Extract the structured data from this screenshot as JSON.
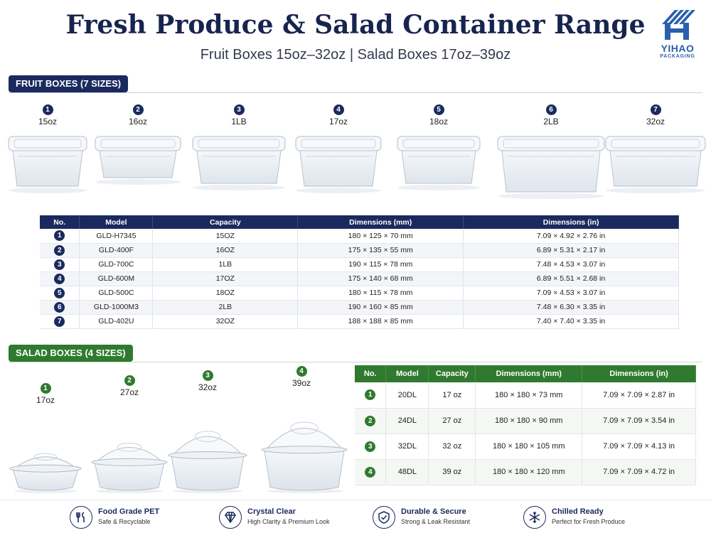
{
  "header": {
    "title": "Fresh Produce & Salad Container Range",
    "subtitle": "Fruit Boxes 15oz–32oz | Salad Boxes 17oz–39oz",
    "brand": "YIHAO",
    "brand_sub": "PACKAGING"
  },
  "fruit": {
    "section_label": "FRUIT BOXES (7 SIZES)",
    "items": [
      {
        "num": "1",
        "capacity": "15oz"
      },
      {
        "num": "2",
        "capacity": "16oz"
      },
      {
        "num": "3",
        "capacity": "1LB"
      },
      {
        "num": "4",
        "capacity": "17oz"
      },
      {
        "num": "5",
        "capacity": "18oz"
      },
      {
        "num": "6",
        "capacity": "2LB"
      },
      {
        "num": "7",
        "capacity": "32oz"
      }
    ],
    "table": {
      "headers": [
        "No.",
        "Model",
        "Capacity",
        "Dimensions (mm)",
        "Dimensions (in)"
      ],
      "rows": [
        [
          "1",
          "GLD-H7345",
          "15OZ",
          "180 × 125 × 70 mm",
          "7.09 × 4.92 × 2.76 in"
        ],
        [
          "2",
          "GLD-400F",
          "16OZ",
          "175 × 135 × 55 mm",
          "6.89 × 5.31 × 2.17 in"
        ],
        [
          "3",
          "GLD-700C",
          "1LB",
          "190 × 115 × 78 mm",
          "7.48 × 4.53 × 3.07 in"
        ],
        [
          "4",
          "GLD-600M",
          "17OZ",
          "175 × 140 × 68 mm",
          "6.89 × 5.51 × 2.68 in"
        ],
        [
          "5",
          "GLD-500C",
          "18OZ",
          "180 × 115 × 78 mm",
          "7.09 × 4.53 × 3.07 in"
        ],
        [
          "6",
          "GLD-1000M3",
          "2LB",
          "190 × 160 × 85 mm",
          "7.48 × 6.30 × 3.35 in"
        ],
        [
          "7",
          "GLD-402U",
          "32OZ",
          "188 × 188 × 85 mm",
          "7.40 × 7.40 × 3.35 in"
        ]
      ]
    }
  },
  "salad": {
    "section_label": "SALAD BOXES (4 SIZES)",
    "items": [
      {
        "num": "1",
        "capacity": "17oz"
      },
      {
        "num": "2",
        "capacity": "27oz"
      },
      {
        "num": "3",
        "capacity": "32oz"
      },
      {
        "num": "4",
        "capacity": "39oz"
      }
    ],
    "table": {
      "headers": [
        "No.",
        "Model",
        "Capacity",
        "Dimensions (mm)",
        "Dimensions (in)"
      ],
      "rows": [
        [
          "1",
          "20DL",
          "17 oz",
          "180 × 180 × 73 mm",
          "7.09 × 7.09 × 2.87 in"
        ],
        [
          "2",
          "24DL",
          "27 oz",
          "180 × 180 × 90 mm",
          "7.09 × 7.09 × 3.54 in"
        ],
        [
          "3",
          "32DL",
          "32 oz",
          "180 × 180 × 105 mm",
          "7.09 × 7.09 × 4.13 in"
        ],
        [
          "4",
          "48DL",
          "39 oz",
          "180 × 180 × 120 mm",
          "7.09 × 7.09 × 4.72 in"
        ]
      ]
    }
  },
  "features": [
    {
      "icon": "fork-knife-icon",
      "title": "Food Grade PET",
      "desc": "Safe & Recyclable"
    },
    {
      "icon": "diamond-icon",
      "title": "Crystal Clear",
      "desc": "High Clarity & Premium Look"
    },
    {
      "icon": "shield-check-icon",
      "title": "Durable & Secure",
      "desc": "Strong & Leak Resistant"
    },
    {
      "icon": "snowflake-icon",
      "title": "Chilled Ready",
      "desc": "Perfect for Fresh Produce"
    }
  ],
  "colors": {
    "navy": "#1b2a5e",
    "green": "#2f7a2f",
    "brand_blue": "#2b5fad"
  }
}
